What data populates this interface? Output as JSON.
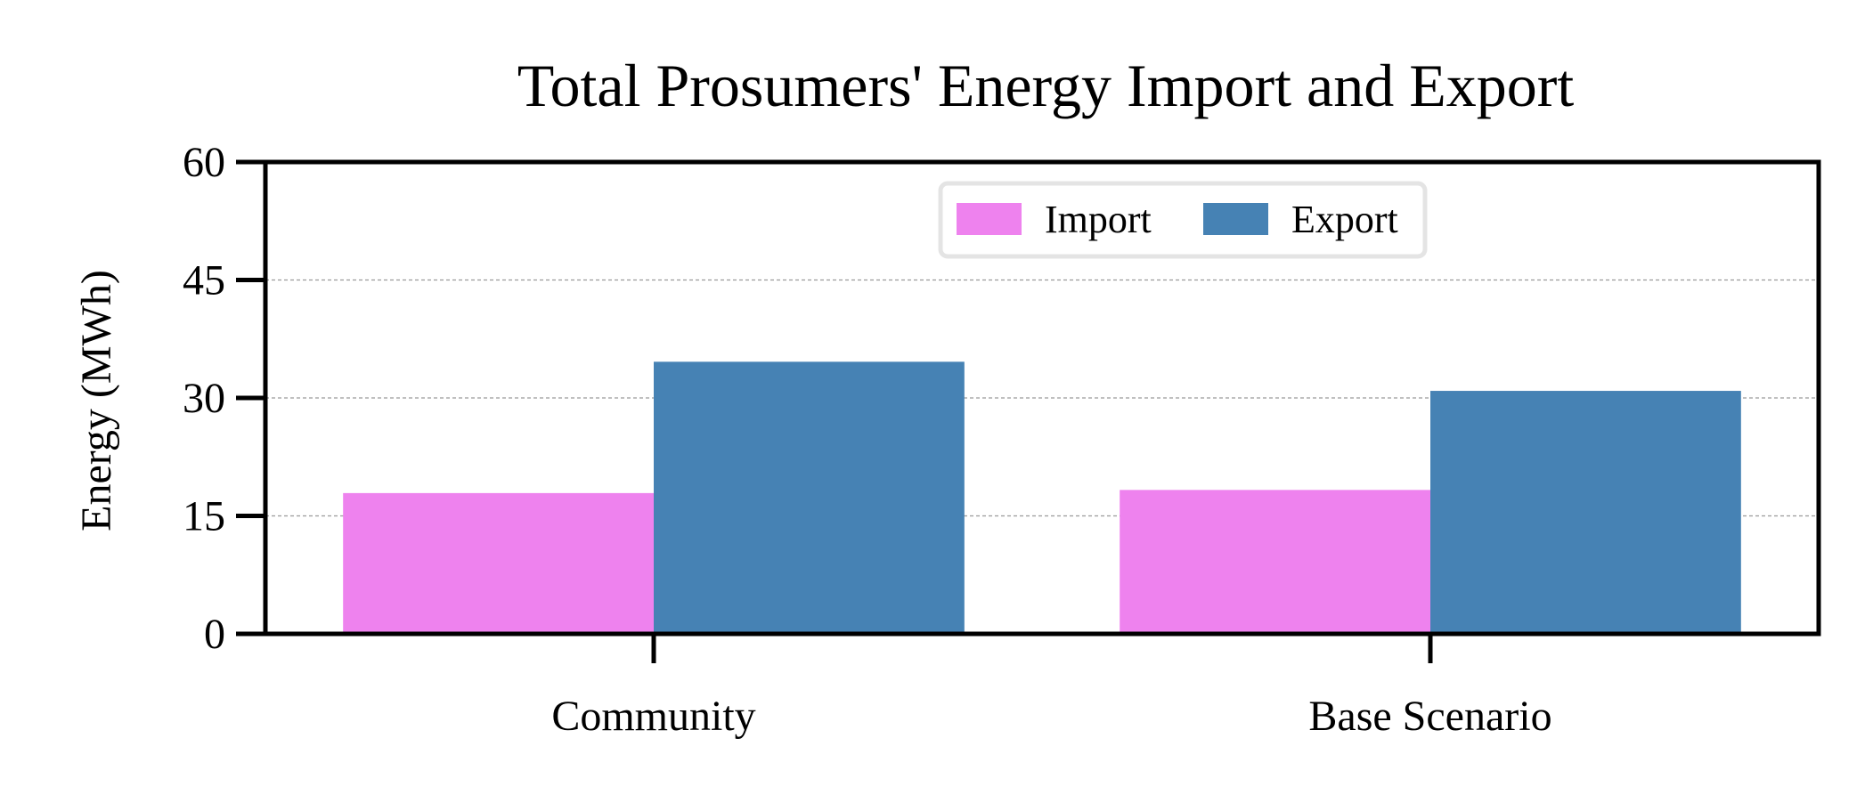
{
  "chart_data": {
    "type": "bar",
    "title": "Total Prosumers' Energy Import and Export",
    "xlabel": "",
    "ylabel": "Energy (MWh)",
    "categories": [
      "Community",
      "Base Scenario"
    ],
    "series": [
      {
        "name": "Import",
        "values": [
          17.9,
          18.3
        ],
        "color": "#ee82ee"
      },
      {
        "name": "Export",
        "values": [
          34.6,
          30.9
        ],
        "color": "#4682b4"
      }
    ],
    "ylim": [
      0,
      60
    ],
    "yticks": [
      0,
      15,
      30,
      45,
      60
    ],
    "grid": "horizontal dashed",
    "legend_position": "top-center"
  }
}
